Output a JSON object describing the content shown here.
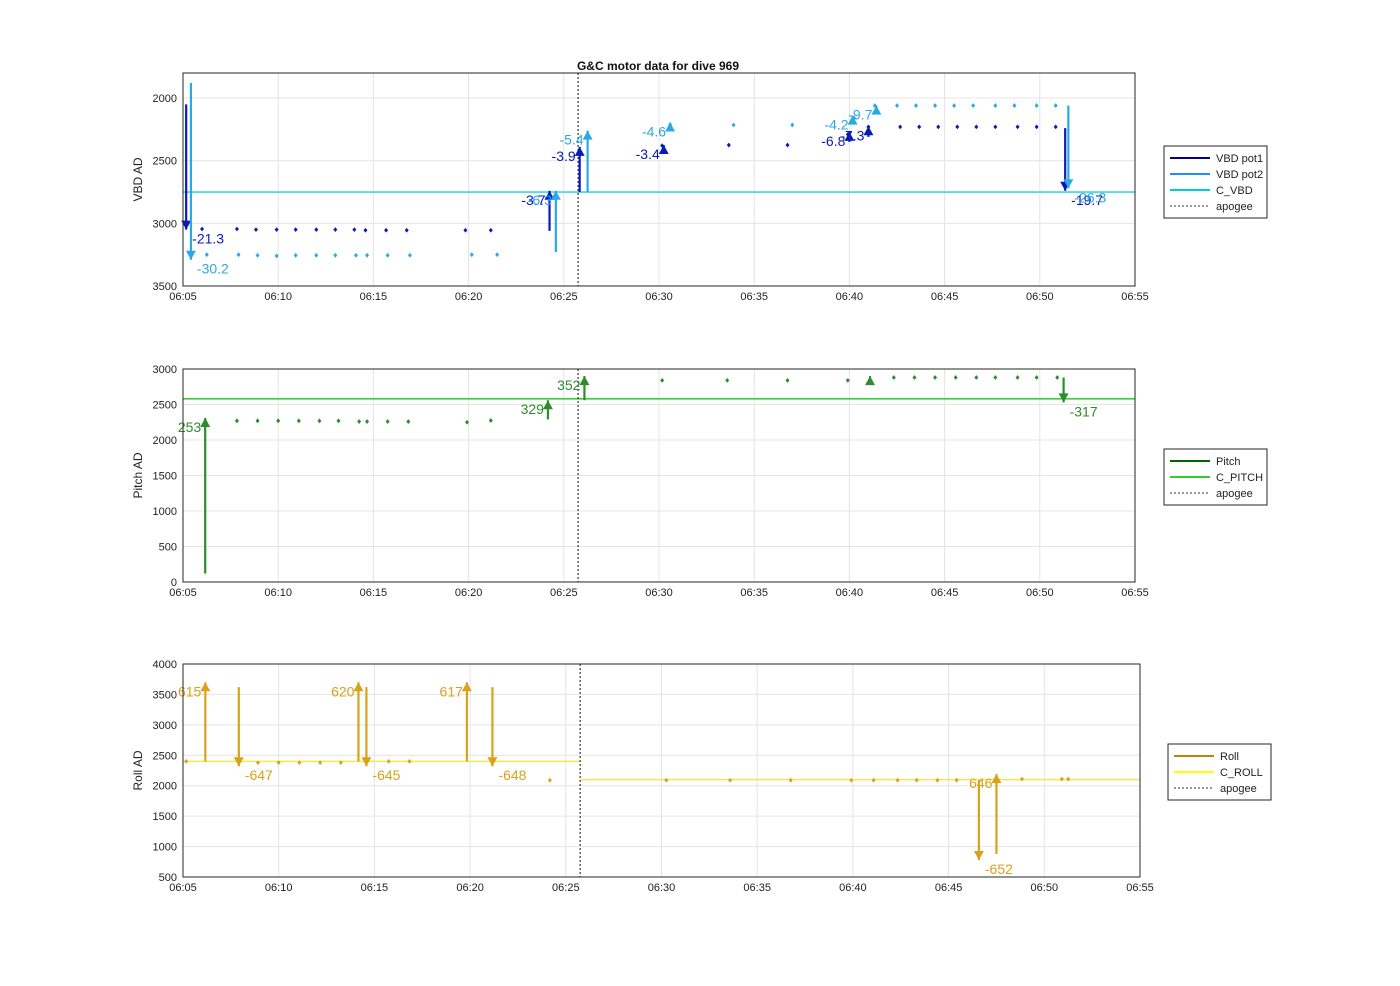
{
  "title": "G&C motor data for dive 969",
  "apogee_time": "06:25:45",
  "chart_data": [
    {
      "type": "scatter",
      "ylabel": "VBD AD",
      "xlim": [
        "06:05",
        "06:55"
      ],
      "ylim": [
        1800,
        3500
      ],
      "y_reversed": true,
      "y_ticks": [
        2000,
        2500,
        3000,
        3500
      ],
      "y_tick_labels": [
        "2000",
        "2500",
        "3000",
        "3500"
      ],
      "x_ticks": [
        "06:05",
        "06:10",
        "06:15",
        "06:20",
        "06:25",
        "06:30",
        "06:35",
        "06:40",
        "06:45",
        "06:50",
        "06:55"
      ],
      "grid": true,
      "legend": {
        "placement": "outside-right",
        "entries": [
          {
            "label": "VBD pot1",
            "color": "#00008B",
            "style": "solid"
          },
          {
            "label": "VBD pot2",
            "color": "#1E90FF",
            "style": "solid"
          },
          {
            "label": "C_VBD",
            "color": "#00CED1",
            "style": "solid"
          },
          {
            "label": "apogee",
            "color": "#333333",
            "style": "dotted"
          }
        ]
      },
      "reference_lines": [
        {
          "name": "C_VBD",
          "y": 2750,
          "color": "#3FD6E6"
        }
      ],
      "series": [
        {
          "name": "VBD pot1",
          "color": "#0A1AB8",
          "marker": "diamond",
          "points": [
            [
              "06:06:00",
              3045
            ],
            [
              "06:07:50",
              3045
            ],
            [
              "06:08:50",
              3050
            ],
            [
              "06:09:55",
              3050
            ],
            [
              "06:10:55",
              3050
            ],
            [
              "06:12:00",
              3050
            ],
            [
              "06:13:00",
              3050
            ],
            [
              "06:14:00",
              3050
            ],
            [
              "06:14:35",
              3055
            ],
            [
              "06:15:40",
              3055
            ],
            [
              "06:16:45",
              3055
            ],
            [
              "06:19:50",
              3055
            ],
            [
              "06:21:10",
              3055
            ],
            [
              "06:30:10",
              2380
            ],
            [
              "06:33:40",
              2375
            ],
            [
              "06:36:45",
              2375
            ],
            [
              "06:39:55",
              2290
            ],
            [
              "06:41:00",
              2230
            ],
            [
              "06:42:40",
              2230
            ],
            [
              "06:43:40",
              2230
            ],
            [
              "06:44:40",
              2230
            ],
            [
              "06:45:40",
              2230
            ],
            [
              "06:46:40",
              2230
            ],
            [
              "06:47:40",
              2230
            ],
            [
              "06:48:50",
              2230
            ],
            [
              "06:49:50",
              2230
            ],
            [
              "06:50:50",
              2230
            ]
          ]
        },
        {
          "name": "VBD pot2",
          "color": "#2CA8E6",
          "marker": "diamond",
          "points": [
            [
              "06:06:15",
              3250
            ],
            [
              "06:07:55",
              3250
            ],
            [
              "06:08:55",
              3255
            ],
            [
              "06:09:55",
              3260
            ],
            [
              "06:10:55",
              3255
            ],
            [
              "06:12:00",
              3255
            ],
            [
              "06:13:00",
              3255
            ],
            [
              "06:14:05",
              3255
            ],
            [
              "06:14:40",
              3255
            ],
            [
              "06:15:45",
              3255
            ],
            [
              "06:16:55",
              3255
            ],
            [
              "06:20:10",
              3250
            ],
            [
              "06:21:30",
              3250
            ],
            [
              "06:30:35",
              2215
            ],
            [
              "06:33:55",
              2215
            ],
            [
              "06:37:00",
              2215
            ],
            [
              "06:40:15",
              2160
            ],
            [
              "06:41:20",
              2060
            ],
            [
              "06:42:30",
              2060
            ],
            [
              "06:43:30",
              2060
            ],
            [
              "06:44:30",
              2060
            ],
            [
              "06:45:30",
              2060
            ],
            [
              "06:46:30",
              2060
            ],
            [
              "06:47:40",
              2060
            ],
            [
              "06:48:40",
              2060
            ],
            [
              "06:49:50",
              2060
            ],
            [
              "06:50:50",
              2060
            ]
          ]
        }
      ],
      "motor_moves": [
        {
          "series": "VBD pot1",
          "x": "06:05:10",
          "y_start": 2050,
          "y_end": 3050,
          "label": "-21.3"
        },
        {
          "series": "VBD pot2",
          "x": "06:05:25",
          "y_start": 1880,
          "y_end": 3290,
          "label": "-30.2"
        },
        {
          "series": "VBD pot1",
          "x": "06:24:15",
          "y_start": 3060,
          "y_end": 2740,
          "label": "-3.7"
        },
        {
          "series": "VBD pot2",
          "x": "06:24:35",
          "y_start": 3230,
          "y_end": 2740,
          "label": "-6.3"
        },
        {
          "series": "VBD pot1",
          "x": "06:25:50",
          "y_start": 2750,
          "y_end": 2390,
          "label": "-3.9"
        },
        {
          "series": "VBD pot2",
          "x": "06:26:15",
          "y_start": 2750,
          "y_end": 2260,
          "label": "-5.4"
        },
        {
          "series": "VBD pot1",
          "x": "06:30:15",
          "y_start": 2390,
          "y_end": 2375,
          "label": "-3.4"
        },
        {
          "series": "VBD pot2",
          "x": "06:30:35",
          "y_start": 2220,
          "y_end": 2195,
          "label": "-4.6"
        },
        {
          "series": "VBD pot1",
          "x": "06:40:00",
          "y_start": 2350,
          "y_end": 2270,
          "label": "-6.8"
        },
        {
          "series": "VBD pot1",
          "x": "06:41:00",
          "y_start": 2310,
          "y_end": 2225,
          "label": "-7.3"
        },
        {
          "series": "VBD pot2",
          "x": "06:40:10",
          "y_start": 2210,
          "y_end": 2140,
          "label": "-4.2"
        },
        {
          "series": "VBD pot2",
          "x": "06:41:25",
          "y_start": 2130,
          "y_end": 2060,
          "label": "-9.7"
        },
        {
          "series": "VBD pot1",
          "x": "06:51:20",
          "y_start": 2240,
          "y_end": 2740,
          "label": "-19.7"
        },
        {
          "series": "VBD pot2",
          "x": "06:51:30",
          "y_start": 2060,
          "y_end": 2720,
          "label": "-26.3"
        }
      ]
    },
    {
      "type": "scatter",
      "ylabel": "Pitch AD",
      "xlim": [
        "06:05",
        "06:55"
      ],
      "ylim": [
        0,
        3000
      ],
      "y_reversed": false,
      "y_ticks": [
        0,
        500,
        1000,
        1500,
        2000,
        2500,
        3000
      ],
      "y_tick_labels": [
        "0",
        "500",
        "1000",
        "1500",
        "2000",
        "2500",
        "3000"
      ],
      "x_ticks": [
        "06:05",
        "06:10",
        "06:15",
        "06:20",
        "06:25",
        "06:30",
        "06:35",
        "06:40",
        "06:45",
        "06:50",
        "06:55"
      ],
      "grid": true,
      "legend": {
        "placement": "outside-right",
        "entries": [
          {
            "label": "Pitch",
            "color": "#006400",
            "style": "solid"
          },
          {
            "label": "C_PITCH",
            "color": "#32CD32",
            "style": "solid"
          },
          {
            "label": "apogee",
            "color": "#333333",
            "style": "dotted"
          }
        ]
      },
      "reference_lines": [
        {
          "name": "C_PITCH",
          "y": 2580,
          "color": "#3CCF3C"
        }
      ],
      "series": [
        {
          "name": "Pitch",
          "color": "#2E8B2E",
          "marker": "diamond",
          "points": [
            [
              "06:07:50",
              2270
            ],
            [
              "06:08:55",
              2270
            ],
            [
              "06:10:00",
              2270
            ],
            [
              "06:11:05",
              2270
            ],
            [
              "06:12:10",
              2270
            ],
            [
              "06:13:10",
              2270
            ],
            [
              "06:14:15",
              2260
            ],
            [
              "06:14:40",
              2260
            ],
            [
              "06:15:45",
              2260
            ],
            [
              "06:16:50",
              2260
            ],
            [
              "06:19:55",
              2250
            ],
            [
              "06:21:10",
              2275
            ],
            [
              "06:30:10",
              2840
            ],
            [
              "06:33:35",
              2840
            ],
            [
              "06:36:45",
              2840
            ],
            [
              "06:39:55",
              2840
            ],
            [
              "06:42:20",
              2880
            ],
            [
              "06:43:25",
              2880
            ],
            [
              "06:44:30",
              2880
            ],
            [
              "06:45:35",
              2880
            ],
            [
              "06:46:40",
              2880
            ],
            [
              "06:47:40",
              2880
            ],
            [
              "06:48:50",
              2880
            ],
            [
              "06:49:50",
              2880
            ],
            [
              "06:50:55",
              2880
            ]
          ]
        }
      ],
      "motor_moves": [
        {
          "series": "Pitch",
          "x": "06:06:10",
          "y_start": 120,
          "y_end": 2310,
          "label": "253"
        },
        {
          "series": "Pitch",
          "x": "06:24:10",
          "y_start": 2290,
          "y_end": 2560,
          "label": "329"
        },
        {
          "series": "Pitch",
          "x": "06:26:05",
          "y_start": 2560,
          "y_end": 2900,
          "label": "352"
        },
        {
          "series": "Pitch",
          "x": "06:41:05",
          "y_start": 2870,
          "y_end": 2900,
          "label": ""
        },
        {
          "series": "Pitch",
          "x": "06:51:15",
          "y_start": 2880,
          "y_end": 2530,
          "label": "-317"
        }
      ]
    },
    {
      "type": "scatter",
      "ylabel": "Roll AD",
      "xlim": [
        "06:05",
        "06:55"
      ],
      "ylim": [
        500,
        4000
      ],
      "y_reversed": false,
      "y_ticks": [
        500,
        1000,
        1500,
        2000,
        2500,
        3000,
        3500,
        4000
      ],
      "y_tick_labels": [
        "500",
        "1000",
        "1500",
        "2000",
        "2500",
        "3000",
        "3500",
        "4000"
      ],
      "x_ticks": [
        "06:05",
        "06:10",
        "06:15",
        "06:20",
        "06:25",
        "06:30",
        "06:35",
        "06:40",
        "06:45",
        "06:50",
        "06:55"
      ],
      "grid": true,
      "legend": {
        "placement": "outside-right",
        "entries": [
          {
            "label": "Roll",
            "color": "#B8860B",
            "style": "solid"
          },
          {
            "label": "C_ROLL",
            "color": "#FFFF00",
            "style": "solid"
          },
          {
            "label": "apogee",
            "color": "#333333",
            "style": "dotted"
          }
        ]
      },
      "reference_lines": [
        {
          "name": "C_ROLL",
          "x_start": "06:05",
          "x_end": "06:25:45",
          "y": 2400,
          "color": "#F2E94E"
        },
        {
          "name": "C_ROLL",
          "x_start": "06:25:45",
          "x_end": "06:55",
          "y": 2100,
          "color": "#F2E94E"
        }
      ],
      "series": [
        {
          "name": "Roll",
          "color": "#D9A21A",
          "marker": "diamond",
          "points": [
            [
              "06:05:10",
              2400
            ],
            [
              "06:08:55",
              2380
            ],
            [
              "06:10:00",
              2380
            ],
            [
              "06:11:05",
              2380
            ],
            [
              "06:12:10",
              2380
            ],
            [
              "06:13:15",
              2380
            ],
            [
              "06:15:45",
              2400
            ],
            [
              "06:16:50",
              2400
            ],
            [
              "06:24:10",
              2090
            ],
            [
              "06:30:15",
              2090
            ],
            [
              "06:33:35",
              2090
            ],
            [
              "06:36:45",
              2090
            ],
            [
              "06:39:55",
              2090
            ],
            [
              "06:41:05",
              2090
            ],
            [
              "06:42:20",
              2090
            ],
            [
              "06:43:20",
              2090
            ],
            [
              "06:44:25",
              2090
            ],
            [
              "06:45:25",
              2090
            ],
            [
              "06:48:50",
              2110
            ],
            [
              "06:50:55",
              2110
            ],
            [
              "06:51:15",
              2110
            ]
          ]
        }
      ],
      "motor_moves": [
        {
          "series": "Roll",
          "x": "06:06:10",
          "y_start": 2400,
          "y_end": 3700,
          "label": "615"
        },
        {
          "series": "Roll",
          "x": "06:07:55",
          "y_start": 3620,
          "y_end": 2320,
          "label": "-647"
        },
        {
          "series": "Roll",
          "x": "06:14:10",
          "y_start": 2400,
          "y_end": 3700,
          "label": "620"
        },
        {
          "series": "Roll",
          "x": "06:14:35",
          "y_start": 3620,
          "y_end": 2320,
          "label": "-645"
        },
        {
          "series": "Roll",
          "x": "06:19:50",
          "y_start": 2400,
          "y_end": 3700,
          "label": "617"
        },
        {
          "series": "Roll",
          "x": "06:21:10",
          "y_start": 3620,
          "y_end": 2320,
          "label": "-648"
        },
        {
          "series": "Roll",
          "x": "06:46:35",
          "y_start": 2090,
          "y_end": 780,
          "label": "-652"
        },
        {
          "series": "Roll",
          "x": "06:47:30",
          "y_start": 880,
          "y_end": 2190,
          "label": "646"
        }
      ]
    }
  ]
}
